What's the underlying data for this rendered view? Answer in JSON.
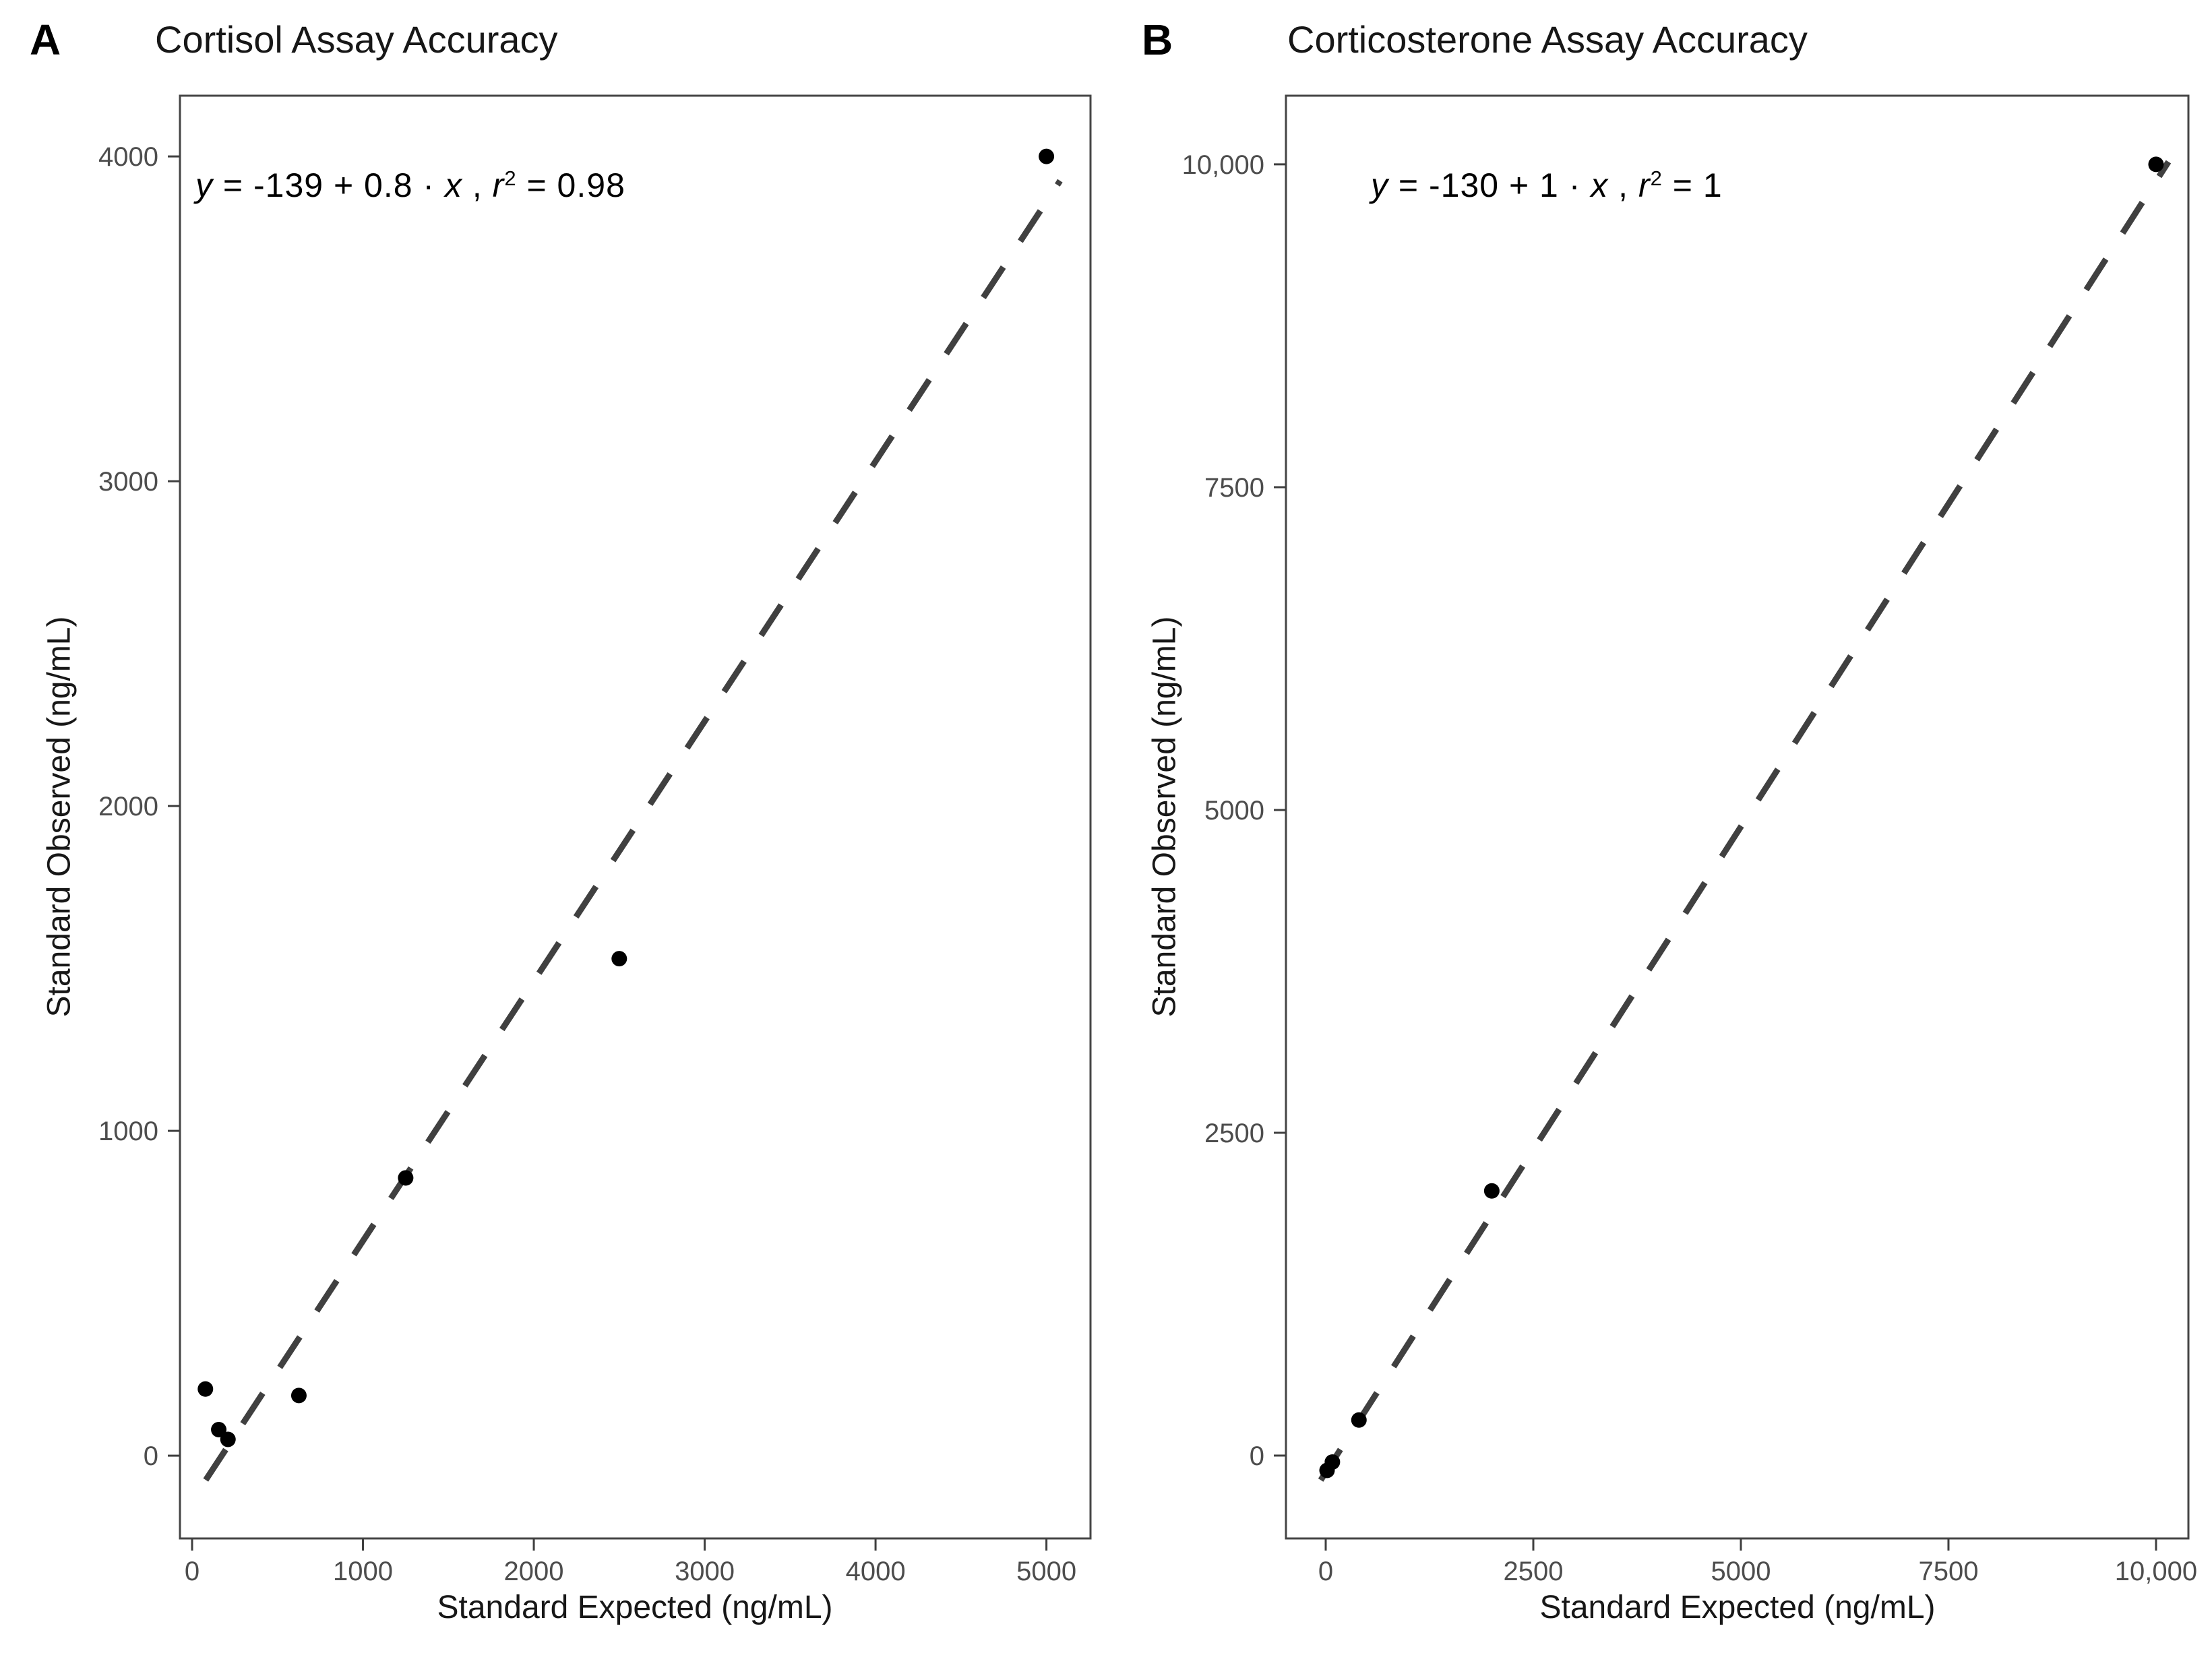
{
  "figure": {
    "background": "#ffffff",
    "panels": [
      {
        "panel_label": "A",
        "title": "Cortisol Assay Accuracy",
        "xlabel": "Standard Expected (ng/mL)",
        "ylabel": "Standard Observed (ng/mL)",
        "eq": {
          "lead": "y",
          "body": " = -139 + 0.8 · ",
          "x": "x",
          "sep": " ,  ",
          "r": "r",
          "power": "2",
          "tail": " = 0.98"
        }
      },
      {
        "panel_label": "B",
        "title": "Corticosterone Assay Accuracy",
        "xlabel": "Standard Expected (ng/mL)",
        "ylabel": "Standard Observed (ng/mL)",
        "eq": {
          "lead": "y",
          "body": " = -130 + 1 · ",
          "x": "x",
          "sep": " ,  ",
          "r": "r",
          "power": "2",
          "tail": " = 1"
        }
      }
    ]
  },
  "chart_data": [
    {
      "type": "scatter",
      "panel": "A",
      "title": "Cortisol Assay Accuracy",
      "xlabel": "Standard Expected (ng/mL)",
      "ylabel": "Standard Observed (ng/mL)",
      "x": [
        78,
        156,
        210,
        625,
        1250,
        2500,
        5000
      ],
      "y": [
        205,
        80,
        50,
        185,
        855,
        1530,
        4000
      ],
      "point_color": "#000000",
      "fit_line": {
        "style": "dashed",
        "color": "#404040",
        "intercept": -139,
        "slope": 0.8,
        "x_start": 80,
        "x_end": 5080,
        "r_squared": 0.98,
        "equation_text": "y = -139 + 0.8 · x ,  r² = 0.98"
      },
      "x_ticks": [
        0,
        1000,
        2000,
        3000,
        4000,
        5000
      ],
      "x_tick_labels": [
        "0",
        "1000",
        "2000",
        "3000",
        "4000",
        "5000"
      ],
      "y_ticks": [
        0,
        1000,
        2000,
        3000,
        4000
      ],
      "y_tick_labels": [
        "0",
        "1000",
        "2000",
        "3000",
        "4000"
      ],
      "xlim": [
        -71,
        5258
      ],
      "ylim": [
        -255,
        4187
      ],
      "grid": false,
      "legend": false
    },
    {
      "type": "scatter",
      "panel": "B",
      "title": "Corticosterone Assay Accuracy",
      "xlabel": "Standard Expected (ng/mL)",
      "ylabel": "Standard Observed (ng/mL)",
      "x": [
        16,
        80,
        400,
        2000,
        10000
      ],
      "y": [
        -115,
        -50,
        275,
        2050,
        10000
      ],
      "point_color": "#000000",
      "fit_line": {
        "style": "dashed",
        "color": "#404040",
        "intercept": -130,
        "slope": 1,
        "x_start": -60,
        "x_end": 10150,
        "r_squared": 1,
        "equation_text": "y = -130 + 1 · x ,  r² = 1"
      },
      "x_ticks": [
        0,
        2500,
        5000,
        7500,
        10000
      ],
      "x_tick_labels": [
        "0",
        "2500",
        "5000",
        "7500",
        "10,000"
      ],
      "y_ticks": [
        0,
        2500,
        5000,
        7500,
        10000
      ],
      "y_tick_labels": [
        "0",
        "2500",
        "5000",
        "7500",
        "10,000"
      ],
      "xlim": [
        -479,
        10390
      ],
      "ylim": [
        -642,
        10532
      ],
      "grid": false,
      "legend": false
    }
  ]
}
